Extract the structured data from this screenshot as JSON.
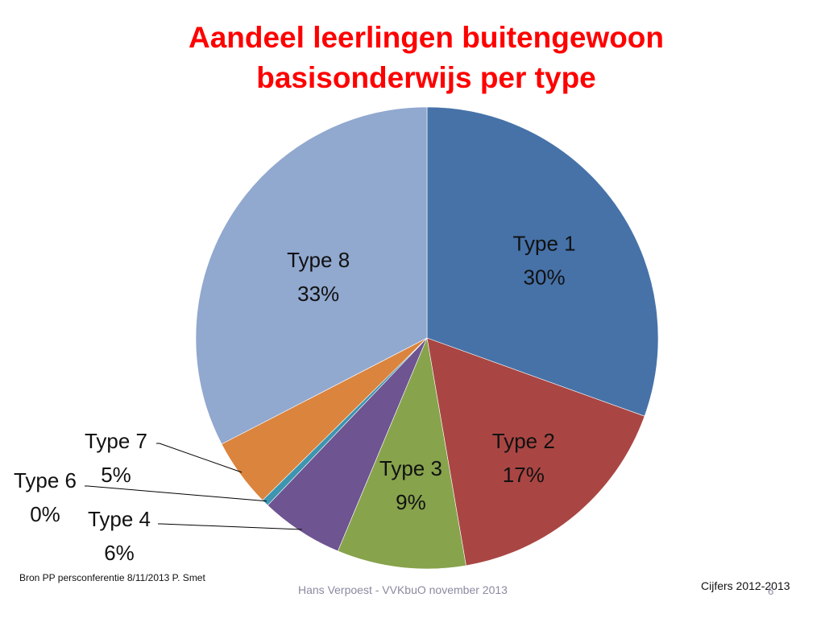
{
  "slide": {
    "title_line1": "Aandeel leerlingen buitengewoon",
    "title_line2": "basisonderwijs per type",
    "source": "Bron PP persconferentie  8/11/2013 P. Smet",
    "footer_center": "Hans Verpoest - VVKbuO november 2013",
    "footer_right": "Cijfers 2012-2013",
    "slide_number": "6"
  },
  "chart_data": {
    "type": "pie",
    "title": "Aandeel leerlingen buitengewoon basisonderwijs per type",
    "start": "12 o'clock",
    "direction": "clockwise",
    "slices": [
      {
        "label": "Type 1",
        "value_label": "30%",
        "value": 30.5,
        "color": "#4672a8"
      },
      {
        "label": "Type 2",
        "value_label": "17%",
        "value": 16.8,
        "color": "#a94643"
      },
      {
        "label": "Type 3",
        "value_label": "9%",
        "value": 9.0,
        "color": "#87a34c"
      },
      {
        "label": "Type 4",
        "value_label": "6%",
        "value": 5.8,
        "color": "#6e5490"
      },
      {
        "label": "Type 6",
        "value_label": "0%",
        "value": 0.5,
        "color": "#3d95b0"
      },
      {
        "label": "Type 7",
        "value_label": "5%",
        "value": 4.8,
        "color": "#db843d"
      },
      {
        "label": "Type 8",
        "value_label": "33%",
        "value": 32.6,
        "color": "#91a8cf"
      }
    ]
  }
}
